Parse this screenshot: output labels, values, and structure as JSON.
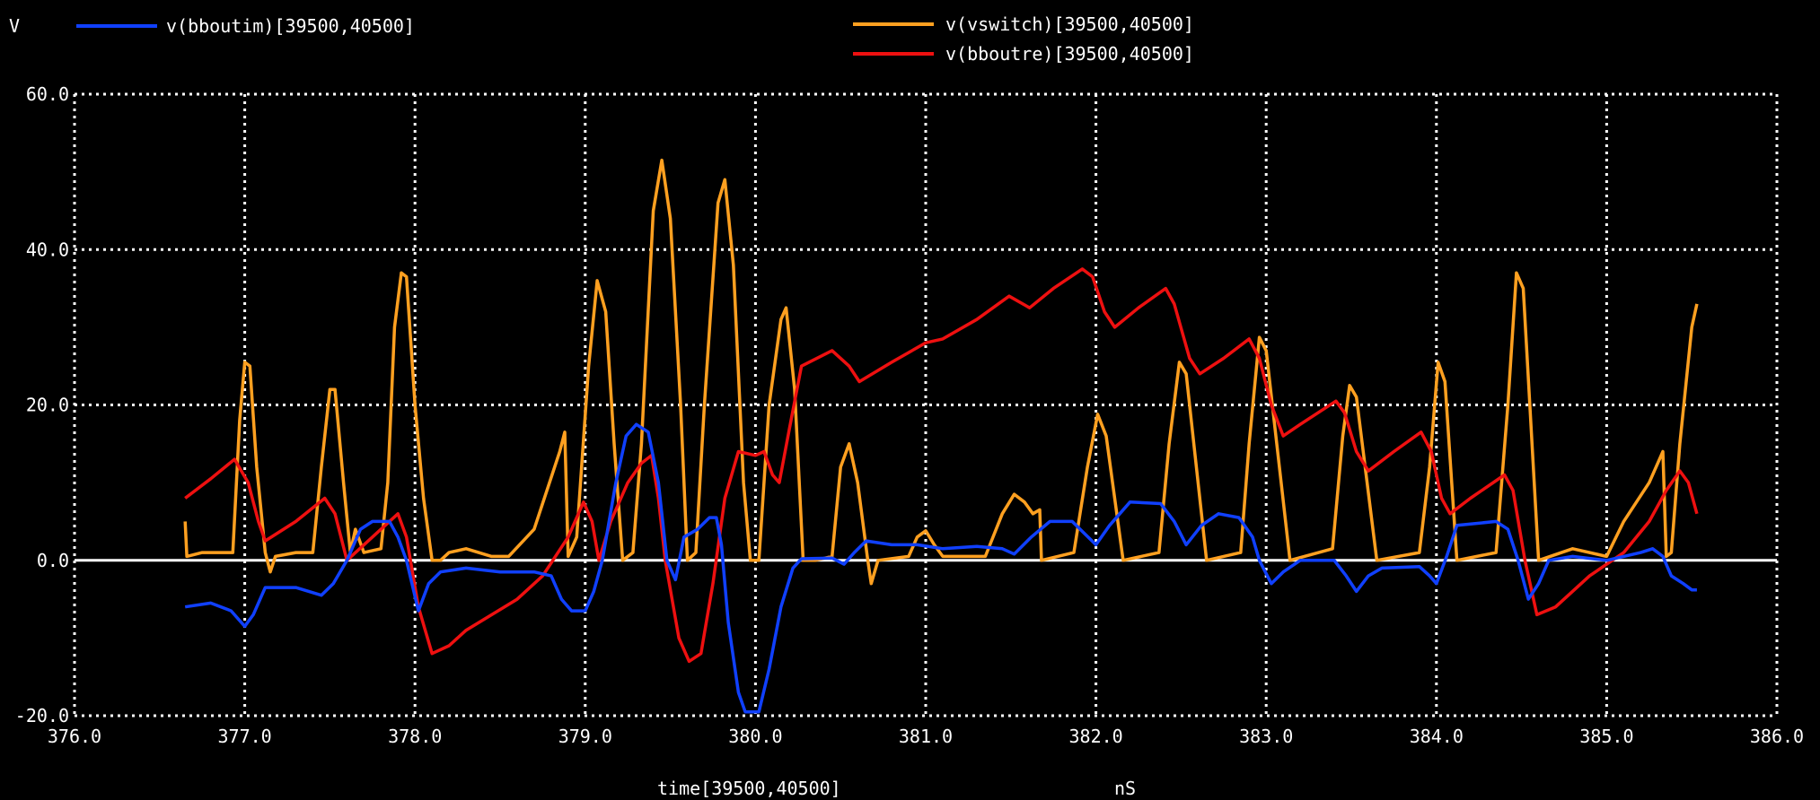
{
  "chart_data": {
    "type": "line",
    "ylabel": "V",
    "xlabel": "time[39500,40500]",
    "xunit": "nS",
    "xlim": [
      376.0,
      386.0
    ],
    "ylim": [
      -20.0,
      60.0
    ],
    "grid": true,
    "legend_placement": "top",
    "x_ticks": [
      "376.0",
      "377.0",
      "378.0",
      "379.0",
      "380.0",
      "381.0",
      "382.0",
      "383.0",
      "384.0",
      "385.0",
      "386.0"
    ],
    "y_ticks": [
      "60.0",
      "40.0",
      "20.0",
      "0.0",
      "-20.0"
    ],
    "x_tick_values": [
      376,
      377,
      378,
      379,
      380,
      381,
      382,
      383,
      384,
      385,
      386
    ],
    "y_tick_values": [
      60,
      40,
      20,
      0,
      -20
    ],
    "colors": {
      "background": "#000000",
      "grid": "#ffffff"
    },
    "series": [
      {
        "name": "v(bboutim)[39500,40500]",
        "color": "#1040ff",
        "points": [
          [
            376.65,
            -6
          ],
          [
            376.8,
            -5.5
          ],
          [
            376.92,
            -6.5
          ],
          [
            377.0,
            -8.5
          ],
          [
            377.05,
            -7
          ],
          [
            377.12,
            -3.5
          ],
          [
            377.3,
            -3.5
          ],
          [
            377.45,
            -4.5
          ],
          [
            377.52,
            -3
          ],
          [
            377.6,
            0
          ],
          [
            377.68,
            4
          ],
          [
            377.75,
            5
          ],
          [
            377.85,
            5
          ],
          [
            377.9,
            3
          ],
          [
            377.95,
            0
          ],
          [
            378.02,
            -6.5
          ],
          [
            378.08,
            -3
          ],
          [
            378.15,
            -1.5
          ],
          [
            378.3,
            -1
          ],
          [
            378.5,
            -1.5
          ],
          [
            378.7,
            -1.5
          ],
          [
            378.8,
            -2
          ],
          [
            378.86,
            -5
          ],
          [
            378.92,
            -6.5
          ],
          [
            379.0,
            -6.5
          ],
          [
            379.05,
            -4
          ],
          [
            379.1,
            0
          ],
          [
            379.18,
            10
          ],
          [
            379.24,
            16
          ],
          [
            379.3,
            17.5
          ],
          [
            379.37,
            16.5
          ],
          [
            379.43,
            10
          ],
          [
            379.48,
            0
          ],
          [
            379.53,
            -2.5
          ],
          [
            379.58,
            3
          ],
          [
            379.66,
            4
          ],
          [
            379.73,
            5.5
          ],
          [
            379.77,
            5.5
          ],
          [
            379.8,
            2
          ],
          [
            379.84,
            -8
          ],
          [
            379.9,
            -17
          ],
          [
            379.94,
            -19.5
          ],
          [
            380.02,
            -19.5
          ],
          [
            380.08,
            -14
          ],
          [
            380.15,
            -6
          ],
          [
            380.22,
            -1
          ],
          [
            380.27,
            0.2
          ],
          [
            380.45,
            0.3
          ],
          [
            380.52,
            -0.5
          ],
          [
            380.58,
            1
          ],
          [
            380.65,
            2.5
          ],
          [
            380.8,
            2
          ],
          [
            380.95,
            2
          ],
          [
            381.1,
            1.5
          ],
          [
            381.3,
            1.8
          ],
          [
            381.45,
            1.5
          ],
          [
            381.52,
            0.8
          ],
          [
            381.62,
            3
          ],
          [
            381.73,
            5
          ],
          [
            381.86,
            5
          ],
          [
            381.93,
            3.5
          ],
          [
            382.0,
            2
          ],
          [
            382.08,
            4.5
          ],
          [
            382.2,
            7.5
          ],
          [
            382.38,
            7.3
          ],
          [
            382.46,
            5
          ],
          [
            382.53,
            2
          ],
          [
            382.62,
            4.5
          ],
          [
            382.72,
            6
          ],
          [
            382.84,
            5.5
          ],
          [
            382.92,
            3
          ],
          [
            382.96,
            0
          ],
          [
            383.03,
            -3
          ],
          [
            383.1,
            -1.5
          ],
          [
            383.2,
            0
          ],
          [
            383.4,
            0
          ],
          [
            383.47,
            -2
          ],
          [
            383.53,
            -4
          ],
          [
            383.6,
            -2
          ],
          [
            383.68,
            -1
          ],
          [
            383.9,
            -0.8
          ],
          [
            383.96,
            -2
          ],
          [
            384.0,
            -3
          ],
          [
            384.06,
            0.5
          ],
          [
            384.12,
            4.5
          ],
          [
            384.35,
            5
          ],
          [
            384.42,
            4
          ],
          [
            384.48,
            0
          ],
          [
            384.54,
            -5
          ],
          [
            384.6,
            -3
          ],
          [
            384.66,
            0
          ],
          [
            384.8,
            0.5
          ],
          [
            385.0,
            0
          ],
          [
            385.1,
            0.5
          ],
          [
            385.2,
            1
          ],
          [
            385.27,
            1.5
          ],
          [
            385.33,
            0.5
          ],
          [
            385.38,
            -2
          ],
          [
            385.45,
            -3
          ],
          [
            385.5,
            -3.8
          ],
          [
            385.53,
            -3.8
          ]
        ]
      },
      {
        "name": "v(vswitch)[39500,40500]",
        "color": "#ffa020",
        "points": [
          [
            376.65,
            5
          ],
          [
            376.66,
            0.5
          ],
          [
            376.75,
            1
          ],
          [
            376.93,
            1
          ],
          [
            376.97,
            18
          ],
          [
            377.0,
            25.5
          ],
          [
            377.03,
            25
          ],
          [
            377.07,
            12
          ],
          [
            377.12,
            1
          ],
          [
            377.15,
            -1.5
          ],
          [
            377.18,
            0.5
          ],
          [
            377.3,
            1
          ],
          [
            377.4,
            1
          ],
          [
            377.45,
            12
          ],
          [
            377.5,
            22
          ],
          [
            377.53,
            22
          ],
          [
            377.58,
            10
          ],
          [
            377.62,
            1
          ],
          [
            377.65,
            4
          ],
          [
            377.7,
            1
          ],
          [
            377.8,
            1.5
          ],
          [
            377.84,
            10
          ],
          [
            377.88,
            30
          ],
          [
            377.92,
            37
          ],
          [
            377.95,
            36.5
          ],
          [
            378.0,
            20
          ],
          [
            378.05,
            8
          ],
          [
            378.1,
            0
          ],
          [
            378.15,
            0
          ],
          [
            378.2,
            1
          ],
          [
            378.3,
            1.5
          ],
          [
            378.45,
            0.5
          ],
          [
            378.55,
            0.5
          ],
          [
            378.7,
            4
          ],
          [
            378.85,
            14
          ],
          [
            378.88,
            16.5
          ],
          [
            378.9,
            0.5
          ],
          [
            378.95,
            3
          ],
          [
            379.02,
            25
          ],
          [
            379.07,
            36
          ],
          [
            379.12,
            32
          ],
          [
            379.17,
            15
          ],
          [
            379.22,
            0
          ],
          [
            379.28,
            1
          ],
          [
            379.33,
            15
          ],
          [
            379.4,
            45
          ],
          [
            379.45,
            51.5
          ],
          [
            379.5,
            44
          ],
          [
            379.56,
            20
          ],
          [
            379.6,
            0
          ],
          [
            379.65,
            1
          ],
          [
            379.7,
            20
          ],
          [
            379.78,
            46
          ],
          [
            379.82,
            49
          ],
          [
            379.87,
            38
          ],
          [
            379.93,
            10
          ],
          [
            379.97,
            0
          ],
          [
            380.02,
            0
          ],
          [
            380.08,
            20
          ],
          [
            380.15,
            31
          ],
          [
            380.18,
            32.5
          ],
          [
            380.23,
            22
          ],
          [
            380.28,
            0
          ],
          [
            380.35,
            0
          ],
          [
            380.45,
            0.5
          ],
          [
            380.5,
            12
          ],
          [
            380.55,
            15
          ],
          [
            380.6,
            10
          ],
          [
            380.66,
            0
          ],
          [
            380.68,
            -3
          ],
          [
            380.72,
            0
          ],
          [
            380.9,
            0.5
          ],
          [
            380.95,
            3
          ],
          [
            381.0,
            3.8
          ],
          [
            381.05,
            2
          ],
          [
            381.1,
            0.5
          ],
          [
            381.35,
            0.5
          ],
          [
            381.45,
            6
          ],
          [
            381.52,
            8.5
          ],
          [
            381.58,
            7.5
          ],
          [
            381.63,
            6
          ],
          [
            381.67,
            6.5
          ],
          [
            381.68,
            0
          ],
          [
            381.87,
            1
          ],
          [
            381.95,
            12
          ],
          [
            382.01,
            18.8
          ],
          [
            382.06,
            16
          ],
          [
            382.16,
            0
          ],
          [
            382.37,
            1
          ],
          [
            382.43,
            15
          ],
          [
            382.49,
            25.5
          ],
          [
            382.53,
            24
          ],
          [
            382.65,
            0
          ],
          [
            382.85,
            1
          ],
          [
            382.9,
            15
          ],
          [
            382.96,
            28.7
          ],
          [
            383.0,
            27
          ],
          [
            383.14,
            0
          ],
          [
            383.39,
            1.5
          ],
          [
            383.45,
            16
          ],
          [
            383.49,
            22.5
          ],
          [
            383.53,
            21
          ],
          [
            383.65,
            0
          ],
          [
            383.9,
            1
          ],
          [
            383.96,
            12
          ],
          [
            384.01,
            25.5
          ],
          [
            384.05,
            23
          ],
          [
            384.12,
            0
          ],
          [
            384.35,
            1
          ],
          [
            384.42,
            20
          ],
          [
            384.47,
            37
          ],
          [
            384.51,
            35
          ],
          [
            384.6,
            0
          ],
          [
            384.8,
            1.5
          ],
          [
            385.0,
            0.5
          ],
          [
            385.1,
            5
          ],
          [
            385.25,
            10
          ],
          [
            385.33,
            14
          ],
          [
            385.35,
            0.5
          ],
          [
            385.38,
            1
          ],
          [
            385.43,
            15
          ],
          [
            385.5,
            30
          ],
          [
            385.53,
            33
          ]
        ]
      },
      {
        "name": "v(bboutre)[39500,40500]",
        "color": "#ee1010",
        "points": [
          [
            376.65,
            8
          ],
          [
            376.8,
            10.5
          ],
          [
            376.94,
            13
          ],
          [
            377.02,
            10
          ],
          [
            377.08,
            5
          ],
          [
            377.12,
            2.5
          ],
          [
            377.3,
            5
          ],
          [
            377.47,
            8
          ],
          [
            377.53,
            6
          ],
          [
            377.6,
            0
          ],
          [
            377.75,
            3
          ],
          [
            377.9,
            6
          ],
          [
            377.95,
            3
          ],
          [
            378.02,
            -6
          ],
          [
            378.1,
            -12
          ],
          [
            378.2,
            -11
          ],
          [
            378.3,
            -9
          ],
          [
            378.6,
            -5
          ],
          [
            378.75,
            -2
          ],
          [
            378.9,
            3
          ],
          [
            378.99,
            7.5
          ],
          [
            379.04,
            5
          ],
          [
            379.08,
            0
          ],
          [
            379.15,
            5
          ],
          [
            379.25,
            10
          ],
          [
            379.33,
            12.5
          ],
          [
            379.39,
            13.5
          ],
          [
            379.43,
            8
          ],
          [
            379.47,
            0
          ],
          [
            379.55,
            -10
          ],
          [
            379.61,
            -13
          ],
          [
            379.68,
            -12
          ],
          [
            379.75,
            -3
          ],
          [
            379.82,
            8
          ],
          [
            379.9,
            14
          ],
          [
            380.0,
            13.5
          ],
          [
            380.05,
            14
          ],
          [
            380.1,
            11
          ],
          [
            380.14,
            10
          ],
          [
            380.2,
            17
          ],
          [
            380.27,
            25
          ],
          [
            380.45,
            27
          ],
          [
            380.55,
            25
          ],
          [
            380.61,
            23
          ],
          [
            380.8,
            25.5
          ],
          [
            381.0,
            28
          ],
          [
            381.1,
            28.5
          ],
          [
            381.3,
            31
          ],
          [
            381.49,
            34
          ],
          [
            381.61,
            32.5
          ],
          [
            381.75,
            35
          ],
          [
            381.92,
            37.5
          ],
          [
            381.98,
            36.5
          ],
          [
            382.05,
            32
          ],
          [
            382.11,
            30
          ],
          [
            382.25,
            32.5
          ],
          [
            382.41,
            35
          ],
          [
            382.46,
            33
          ],
          [
            382.55,
            26
          ],
          [
            382.61,
            24
          ],
          [
            382.75,
            26
          ],
          [
            382.9,
            28.5
          ],
          [
            382.96,
            26
          ],
          [
            383.03,
            20
          ],
          [
            383.1,
            16
          ],
          [
            383.2,
            17.5
          ],
          [
            383.41,
            20.5
          ],
          [
            383.46,
            19
          ],
          [
            383.53,
            14
          ],
          [
            383.6,
            11.5
          ],
          [
            383.75,
            14
          ],
          [
            383.91,
            16.5
          ],
          [
            383.97,
            14
          ],
          [
            384.03,
            8
          ],
          [
            384.08,
            6
          ],
          [
            384.2,
            8
          ],
          [
            384.4,
            11
          ],
          [
            384.45,
            9
          ],
          [
            384.52,
            0
          ],
          [
            384.59,
            -7
          ],
          [
            384.7,
            -6
          ],
          [
            384.9,
            -2
          ],
          [
            385.1,
            1
          ],
          [
            385.25,
            5
          ],
          [
            385.35,
            9
          ],
          [
            385.43,
            11.5
          ],
          [
            385.48,
            10
          ],
          [
            385.53,
            6
          ]
        ]
      }
    ]
  }
}
